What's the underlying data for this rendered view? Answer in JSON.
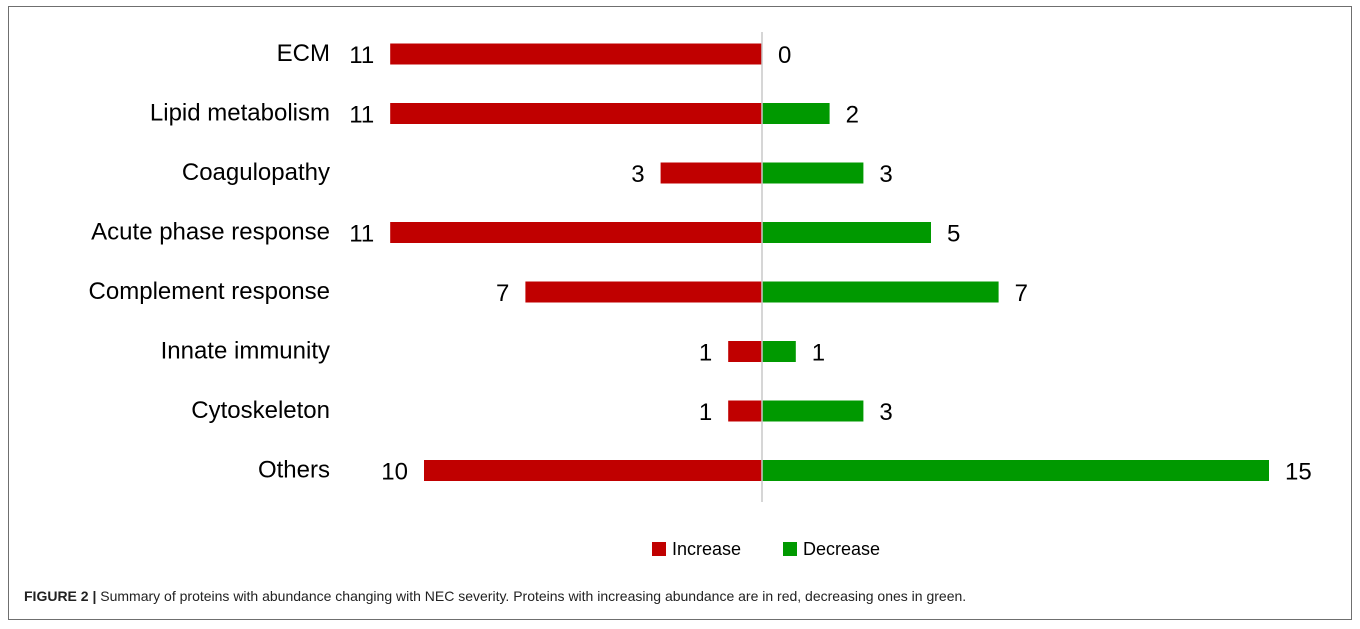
{
  "chart_data": {
    "type": "bar",
    "orientation": "horizontal-diverging",
    "categories": [
      "ECM",
      "Lipid metabolism",
      "Coagulopathy",
      "Acute phase response",
      "Complement response",
      "Innate immunity",
      "Cytoskeleton",
      "Others"
    ],
    "series": [
      {
        "name": "Increase",
        "color": "#c00000",
        "direction": "left",
        "values": [
          11,
          11,
          3,
          11,
          7,
          1,
          1,
          10
        ]
      },
      {
        "name": "Decrease",
        "color": "#009900",
        "direction": "right",
        "values": [
          0,
          2,
          3,
          5,
          7,
          1,
          3,
          15
        ]
      }
    ],
    "legend": {
      "placement": "bottom-center"
    },
    "grid": false,
    "axis_line_color": "#c8c8c8"
  },
  "caption": {
    "label": "FIGURE 2 |",
    "text": " Summary of proteins with abundance changing with NEC severity. Proteins with increasing abundance are in red, decreasing ones in green."
  }
}
